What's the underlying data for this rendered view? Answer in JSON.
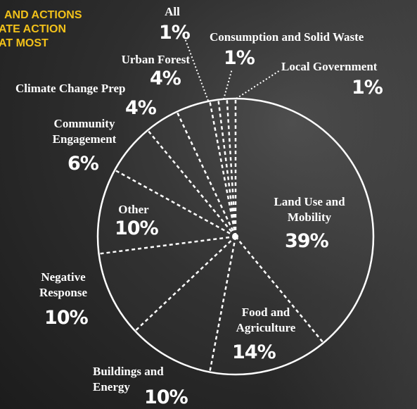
{
  "chart_data": {
    "type": "pie",
    "title_lines": [
      "AND ACTIONS",
      "ATE ACTION",
      "AT MOST"
    ],
    "categories": [
      "Land Use and Mobility",
      "Food and Agriculture",
      "Buildings and Energy",
      "Negative Response",
      "Other",
      "Community Engagement",
      "Climate Change Prep",
      "Urban Forest",
      "All",
      "Consumption and Solid Waste",
      "Local Government"
    ],
    "values": [
      39,
      14,
      10,
      10,
      10,
      6,
      4,
      4,
      1,
      1,
      1
    ],
    "value_labels": [
      "39%",
      "14%",
      "10%",
      "10%",
      "10%",
      "6%",
      "4%",
      "4%",
      "1%",
      "1%",
      "1%"
    ],
    "color": "#ffffff"
  }
}
